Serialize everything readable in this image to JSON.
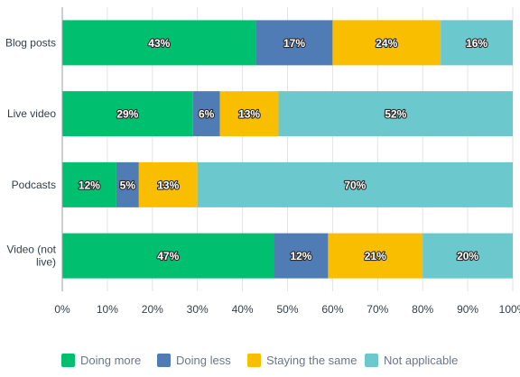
{
  "chart_data": {
    "type": "bar",
    "orientation": "horizontal",
    "stacked": true,
    "categories": [
      "Blog posts",
      "Live video",
      "Podcasts",
      "Video (not live)"
    ],
    "series": [
      {
        "name": "Doing more",
        "color": "#00bf6f",
        "values": [
          43,
          29,
          12,
          47
        ],
        "labels": [
          "43%",
          "29%",
          "12%",
          "47%"
        ]
      },
      {
        "name": "Doing less",
        "color": "#507cb6",
        "values": [
          17,
          6,
          5,
          12
        ],
        "labels": [
          "17%",
          "6%",
          "5%",
          "12%"
        ]
      },
      {
        "name": "Staying the same",
        "color": "#f9be00",
        "values": [
          24,
          13,
          13,
          21
        ],
        "labels": [
          "24%",
          "13%",
          "13%",
          "21%"
        ]
      },
      {
        "name": "Not applicable",
        "color": "#6bc8cd",
        "values": [
          16,
          52,
          70,
          20
        ],
        "labels": [
          "16%",
          "52%",
          "70%",
          "20%"
        ]
      }
    ],
    "xlim": [
      0,
      100
    ],
    "x_ticks": [
      "0%",
      "10%",
      "20%",
      "30%",
      "40%",
      "50%",
      "60%",
      "70%",
      "80%",
      "90%",
      "100%"
    ],
    "grid": true,
    "legend_position": "bottom"
  }
}
